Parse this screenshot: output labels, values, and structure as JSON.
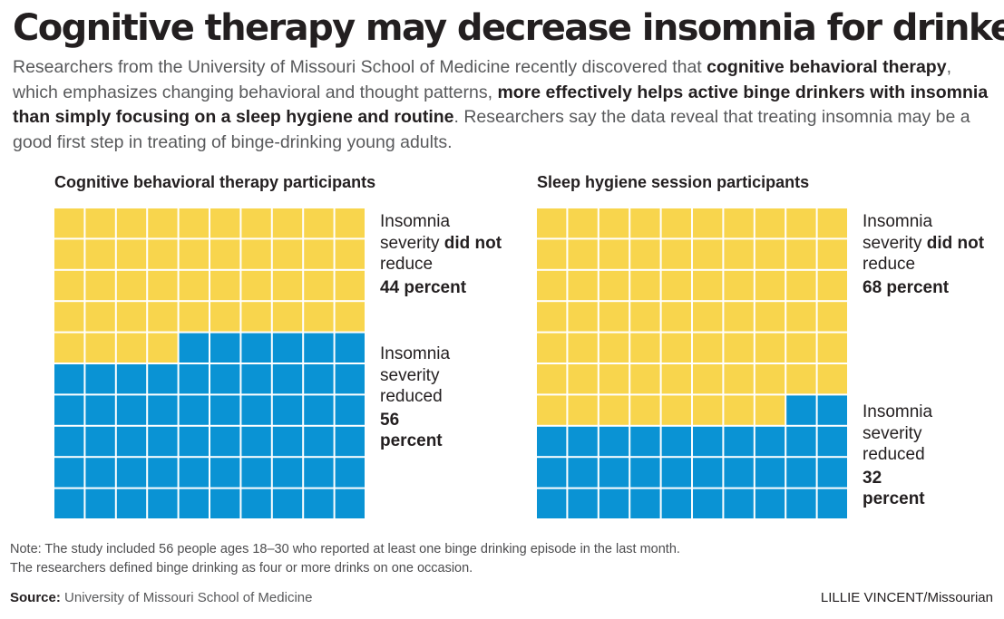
{
  "header": {
    "title": "Cognitive therapy may decrease insomnia for drinkers",
    "intro": [
      {
        "text": "Researchers from the University of Missouri School of Medicine recently discovered that ",
        "bold": false
      },
      {
        "text": "cognitive behavioral therapy",
        "bold": true
      },
      {
        "text": ", which emphasizes changing behavioral and thought patterns, ",
        "bold": false
      },
      {
        "text": "more effectively helps active binge drinkers with insomnia than simply focusing on a sleep hygiene and routine",
        "bold": true
      },
      {
        "text": ". Researchers say the data reveal that treating insomnia may be a good first step in treating of binge-drinking young adults.",
        "bold": false
      }
    ]
  },
  "colors": {
    "not_reduced": "#f8d54d",
    "reduced": "#0a93d4",
    "grid_line": "#ffffff"
  },
  "chart_data": [
    {
      "type": "waffle",
      "title": "Cognitive behavioral therapy participants",
      "grid": {
        "rows": 10,
        "cols": 10
      },
      "fill_order": "from top, row by row, left to right; reduced squares fill the remaining cells",
      "segments": [
        {
          "name": "Insomnia severity did not reduce",
          "line1": "Insomnia severity",
          "bold_part": "did not",
          "line_end": "reduce",
          "percent_label": "44 percent",
          "value": 44,
          "color": "#f8d54d"
        },
        {
          "name": "Insomnia severity reduced",
          "line1": "Insomnia severity reduced",
          "percent_label": "56 percent",
          "value": 56,
          "color": "#0a93d4"
        }
      ]
    },
    {
      "type": "waffle",
      "title": "Sleep hygiene session participants",
      "grid": {
        "rows": 10,
        "cols": 10
      },
      "fill_order": "from top, row by row, left to right; reduced squares fill the remaining cells",
      "segments": [
        {
          "name": "Insomnia severity did not reduce",
          "line1": "Insomnia severity",
          "bold_part": "did not",
          "line_end": "reduce",
          "percent_label": "68 percent",
          "value": 68,
          "color": "#f8d54d"
        },
        {
          "name": "Insomnia severity reduced",
          "line1": "Insomnia severity reduced",
          "percent_label": "32 percent",
          "value": 32,
          "color": "#0a93d4"
        }
      ]
    }
  ],
  "footer": {
    "note": "Note: The study included 56 people ages 18–30 who reported at least one binge drinking episode in the last month. The researchers defined binge drinking as four or more drinks on one occasion.",
    "source_label": "Source:",
    "source_text": "University of Missouri School of Medicine",
    "credit_name": "LILLIE VINCENT",
    "credit_org": "/Missourian"
  }
}
